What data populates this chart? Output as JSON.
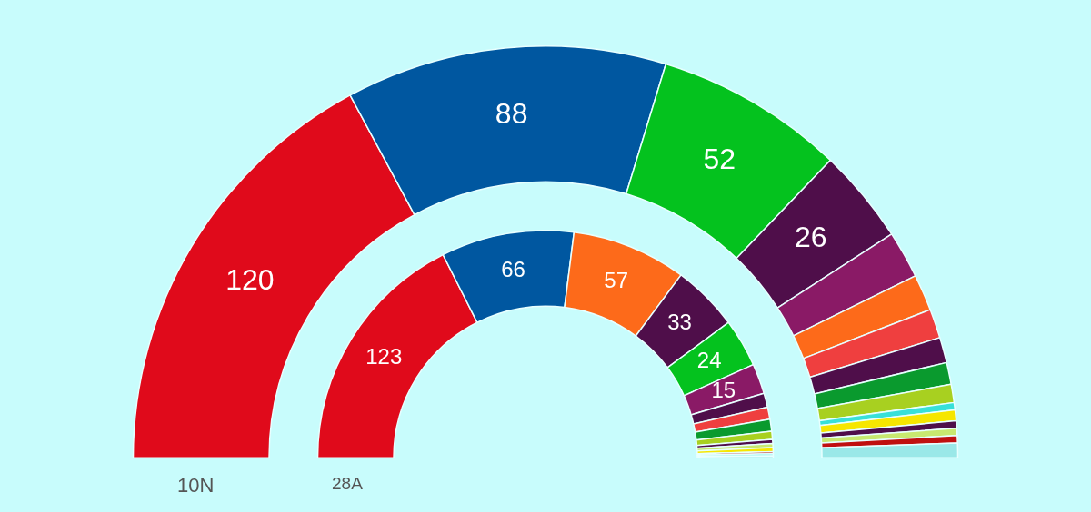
{
  "chart_data": [
    {
      "type": "donut",
      "title": "10N",
      "categories": [
        null,
        null,
        null,
        null,
        null,
        null,
        null,
        null,
        null,
        null,
        null,
        null,
        null,
        null,
        null,
        null
      ],
      "values": [
        120,
        88,
        52,
        26,
        13,
        10,
        8,
        7,
        6,
        5,
        2,
        3,
        2,
        2,
        2,
        4
      ],
      "colors": [
        "#e00a1b",
        "#0057a0",
        "#04c21e",
        "#4f0e4a",
        "#8a1a66",
        "#fd6a1a",
        "#ef3f3f",
        "#4f0e4a",
        "#0a9a2e",
        "#a8d020",
        "#38e0d8",
        "#f6e600",
        "#4f0e4a",
        "#c8e870",
        "#c01010",
        "#9ae8e8"
      ],
      "value_labels": [
        "120",
        "88",
        "52",
        "26",
        null,
        null,
        null,
        null,
        null,
        null,
        null,
        null,
        null,
        null,
        null,
        null
      ]
    },
    {
      "type": "donut",
      "title": "28A",
      "categories": [
        null,
        null,
        null,
        null,
        null,
        null,
        null,
        null,
        null,
        null,
        null,
        null,
        null,
        null,
        null,
        null
      ],
      "values": [
        123,
        66,
        57,
        33,
        24,
        15,
        7,
        6,
        6,
        4,
        2,
        2,
        2,
        1,
        1,
        1
      ],
      "colors": [
        "#e00a1b",
        "#0057a0",
        "#fd6a1a",
        "#4f0e4a",
        "#04c21e",
        "#8a1a66",
        "#4f0e4a",
        "#ef3f3f",
        "#0a9a2e",
        "#a8d020",
        "#4f0e4a",
        "#c8e870",
        "#f6e600",
        "#c01010",
        "#38e0d8",
        "#9ae8e8"
      ],
      "value_labels": [
        "123",
        "66",
        "57",
        "33",
        "24",
        "15",
        null,
        null,
        null,
        null,
        null,
        null,
        null,
        null,
        null,
        null
      ]
    }
  ]
}
